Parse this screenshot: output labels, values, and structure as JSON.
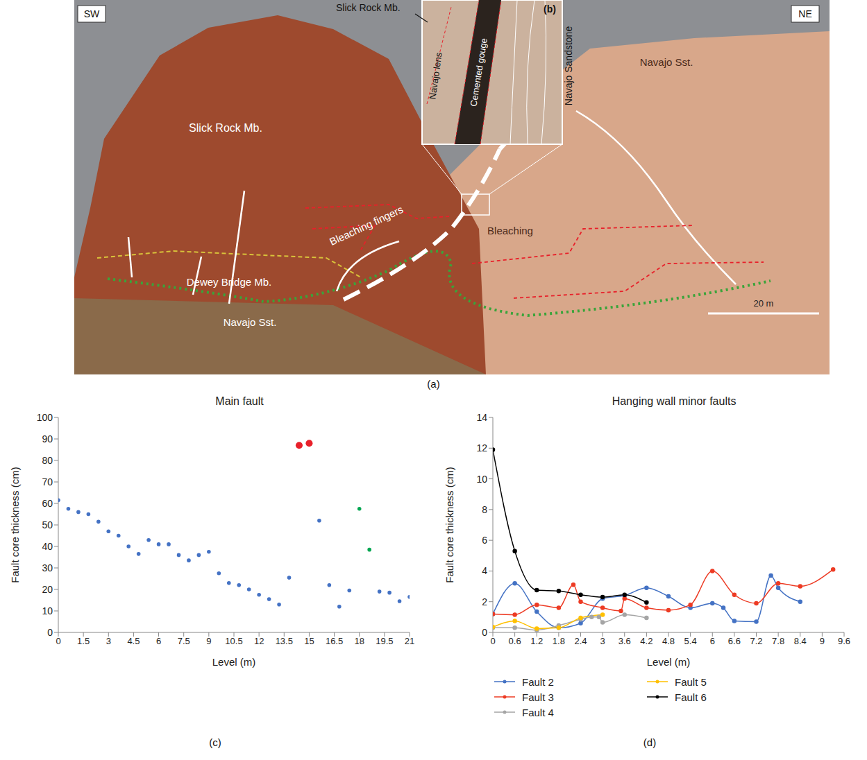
{
  "panel_a": {
    "letter": "(a)",
    "corner_left": "SW",
    "corner_right": "NE",
    "labels": [
      "Slick Rock Mb.",
      "Dewey Bridge Mb.",
      "Navajo Sst.",
      "Bleaching fingers",
      "Bleaching",
      "Navajo Sst."
    ],
    "scale_bar": "20 m",
    "inset": {
      "letter": "(b)",
      "callout": "Slick Rock Mb.",
      "labels": [
        "Navajo lens",
        "Cemented gouge",
        "Navajo Sandstone"
      ]
    }
  },
  "chart_data": [
    {
      "type": "scatter",
      "letter": "(c)",
      "title": "Main fault",
      "x_label": "Level (m)",
      "y_label": "Fault core thickness (cm)",
      "xlim": [
        0,
        21
      ],
      "xticks": [
        0,
        1.5,
        3,
        4.5,
        6,
        7.5,
        9,
        10.5,
        12,
        13.5,
        15,
        16.5,
        18,
        19.5,
        21
      ],
      "ylim": [
        0,
        100
      ],
      "yticks": [
        0,
        10,
        20,
        30,
        40,
        50,
        60,
        70,
        80,
        90,
        100
      ],
      "grid": false,
      "series": [
        {
          "color": "#4472c4",
          "marker": "small",
          "x": [
            0,
            0.6,
            1.2,
            1.8,
            2.4,
            3.0,
            3.6,
            4.2,
            4.8,
            5.4,
            6.0,
            6.6,
            7.2,
            7.8,
            8.4,
            9.0,
            9.6,
            10.2,
            10.8,
            11.4,
            12.0,
            12.6,
            13.2,
            13.8,
            15.6,
            16.2,
            16.8,
            17.4,
            19.2,
            19.8,
            20.4,
            21.0
          ],
          "values": [
            61.5,
            57.5,
            56,
            55,
            51.5,
            47,
            45,
            40,
            36.5,
            43,
            41,
            41,
            36,
            33.5,
            36,
            37.5,
            27.5,
            23,
            22,
            20,
            17.5,
            15.5,
            13,
            25.5,
            52,
            22,
            12,
            19.5,
            19,
            18.5,
            14.5,
            16.5
          ]
        },
        {
          "color": "#e8202a",
          "marker": "large",
          "x": [
            14.4,
            15.0
          ],
          "values": [
            87,
            88
          ]
        },
        {
          "color": "#00a651",
          "marker": "small",
          "x": [
            18.0,
            18.6
          ],
          "values": [
            57.5,
            38.5
          ]
        }
      ]
    },
    {
      "type": "line",
      "letter": "(d)",
      "title": "Hanging wall minor faults",
      "x_label": "Level (m)",
      "y_label": "Fault core thickness (cm)",
      "xlim": [
        0,
        9.6
      ],
      "xticks": [
        0,
        0.6,
        1.2,
        1.8,
        2.4,
        3,
        3.6,
        4.2,
        4.8,
        5.4,
        6,
        6.6,
        7.2,
        7.8,
        8.4,
        9,
        9.6
      ],
      "ylim": [
        0,
        14
      ],
      "yticks": [
        0,
        2,
        4,
        6,
        8,
        10,
        12,
        14
      ],
      "grid": false,
      "legend": "bottom",
      "line_style": "smooth",
      "series": [
        {
          "name": "Fault 2",
          "color": "#4472c4",
          "x": [
            0,
            0.6,
            1.2,
            1.8,
            2.4,
            3.0,
            3.6,
            4.2,
            4.8,
            5.4,
            6.0,
            6.3,
            6.6,
            7.2,
            7.6,
            7.8,
            8.4
          ],
          "values": [
            1.2,
            3.2,
            1.35,
            0.3,
            0.6,
            2.2,
            2.4,
            2.9,
            2.35,
            1.6,
            1.9,
            1.6,
            0.75,
            0.7,
            3.7,
            2.9,
            2.0
          ]
        },
        {
          "name": "Fault 3",
          "color": "#ed3b24",
          "x": [
            0,
            0.6,
            1.2,
            1.8,
            2.2,
            2.4,
            3.0,
            3.5,
            3.6,
            4.2,
            4.8,
            5.4,
            6.0,
            6.6,
            7.2,
            7.8,
            8.4,
            9.3
          ],
          "values": [
            1.2,
            1.15,
            1.8,
            1.6,
            3.1,
            2.0,
            1.6,
            1.4,
            2.2,
            1.6,
            1.45,
            1.8,
            4.0,
            2.45,
            1.9,
            3.2,
            3.0,
            4.1
          ]
        },
        {
          "name": "Fault 4",
          "color": "#a5a5a5",
          "x": [
            0,
            0.6,
            1.2,
            1.8,
            2.4,
            2.7,
            2.9,
            3.0,
            3.6,
            4.2
          ],
          "values": [
            0.3,
            0.3,
            0.15,
            0.45,
            0.85,
            1.0,
            1.0,
            0.65,
            1.15,
            0.95
          ]
        },
        {
          "name": "Fault 5",
          "color": "#ffc000",
          "x": [
            0,
            0.6,
            1.2,
            1.8,
            2.4,
            3.0
          ],
          "values": [
            0.35,
            0.75,
            0.25,
            0.3,
            0.95,
            1.15
          ]
        },
        {
          "name": "Fault 6",
          "color": "#000000",
          "x": [
            0,
            0.6,
            1.2,
            1.8,
            2.4,
            3.0,
            3.6,
            4.2
          ],
          "values": [
            11.9,
            5.3,
            2.75,
            2.7,
            2.45,
            2.3,
            2.45,
            1.95
          ]
        }
      ]
    }
  ]
}
